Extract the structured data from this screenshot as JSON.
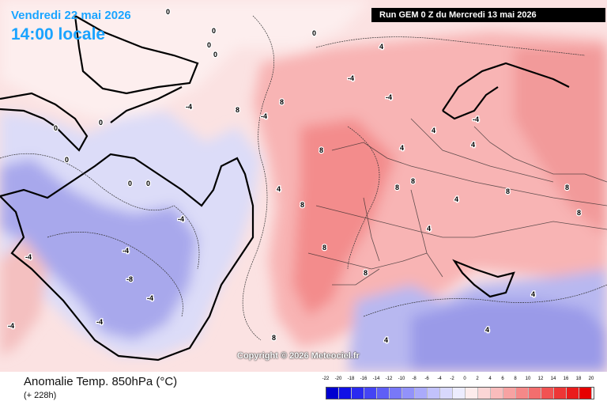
{
  "header": {
    "valid_date": "Vendredi 22 mai 2026",
    "valid_time": "14:00 locale",
    "run_info": "Run GEM 0 Z du Mercredi 13 mai 2026"
  },
  "map": {
    "copyright": "Copyright © 2026 Meteociel.fr",
    "contour_labels": [
      "0",
      "0",
      "0",
      "0",
      "0",
      "0",
      "0",
      "0",
      "0",
      "0",
      "-4",
      "-4",
      "-4",
      "-4",
      "-4",
      "-4",
      "-4",
      "-4",
      "-4",
      "-4",
      "-4",
      "-8",
      "4",
      "4",
      "4",
      "4",
      "4",
      "4",
      "4",
      "4",
      "4",
      "4",
      "8",
      "8",
      "8",
      "8",
      "8",
      "8",
      "8",
      "8",
      "8",
      "8",
      "8",
      "8"
    ],
    "colors": {
      "land_outline": "#000000",
      "anomaly_warm": "#f27a7a",
      "anomaly_cold": "#7a7ae8",
      "label_halo": "#ffffff"
    }
  },
  "footer": {
    "field_title": "Anomalie Temp. 850hPa (°C)",
    "lead_time": "(+ 228h)"
  },
  "legend": {
    "ticks": [
      "-22",
      "-20",
      "-18",
      "-16",
      "-14",
      "-12",
      "-10",
      "-8",
      "-6",
      "-4",
      "-2",
      "0",
      "2",
      "4",
      "6",
      "8",
      "10",
      "12",
      "14",
      "16",
      "18",
      "20"
    ],
    "colors": [
      "#0000d0",
      "#1010e6",
      "#2a2af0",
      "#4444f4",
      "#5e5ef6",
      "#7878f8",
      "#9292fa",
      "#aaaafb",
      "#c2c2fc",
      "#d8d8fd",
      "#ececfe",
      "#fdecec",
      "#fbd6d6",
      "#f9bcbc",
      "#f7a2a2",
      "#f58888",
      "#f36e6e",
      "#f15252",
      "#ee3636",
      "#ea1c1c",
      "#e60000"
    ]
  }
}
